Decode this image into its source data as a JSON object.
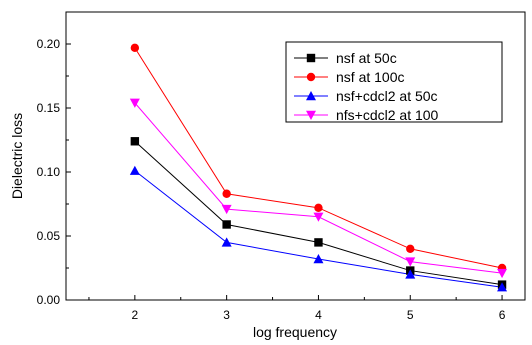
{
  "chart_data": {
    "type": "line",
    "title": "",
    "xlabel": "log frequency",
    "ylabel": "Dielectric loss",
    "xlim": [
      1.25,
      6.25
    ],
    "ylim": [
      0.0,
      0.225
    ],
    "x_ticks": [
      "2",
      "3",
      "4",
      "5",
      "6"
    ],
    "y_ticks": [
      "0.00",
      "0.05",
      "0.10",
      "0.15",
      "0.20"
    ],
    "grid": false,
    "legend_position": "top-right",
    "x": [
      2,
      3,
      4,
      5,
      6
    ],
    "series": [
      {
        "name": "nsf at 50c",
        "color": "#000000",
        "marker": "square",
        "values": [
          0.124,
          0.059,
          0.045,
          0.023,
          0.012
        ]
      },
      {
        "name": "nsf at 100c",
        "color": "#ff0000",
        "marker": "circle",
        "values": [
          0.197,
          0.083,
          0.072,
          0.04,
          0.025
        ]
      },
      {
        "name": "nsf+cdcl2 at 50c",
        "color": "#0000ff",
        "marker": "triangle-up",
        "values": [
          0.101,
          0.045,
          0.032,
          0.02,
          0.01
        ]
      },
      {
        "name": "nfs+cdcl2 at 100",
        "color": "#ff00ff",
        "marker": "triangle-down",
        "values": [
          0.154,
          0.071,
          0.065,
          0.03,
          0.021
        ]
      }
    ]
  }
}
